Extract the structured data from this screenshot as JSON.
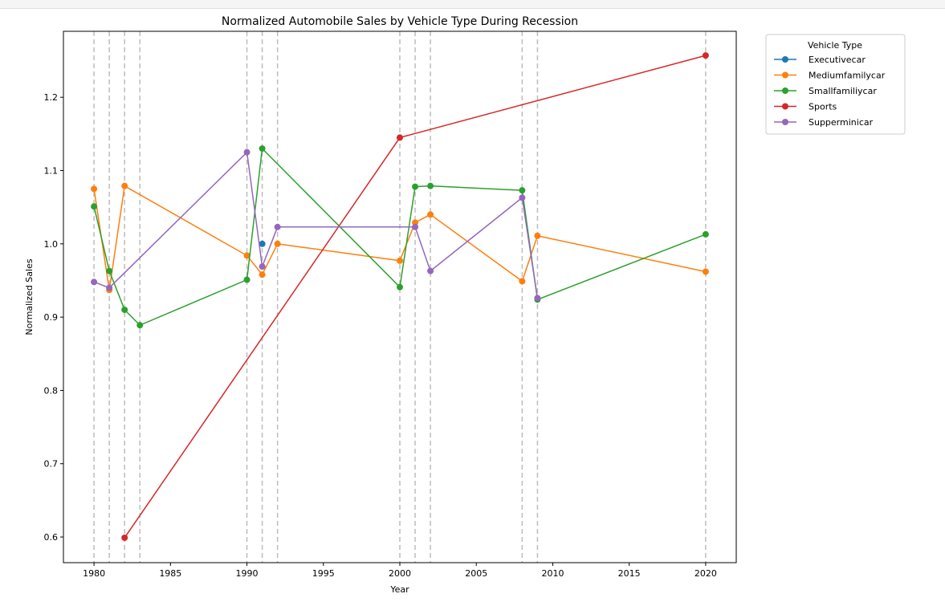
{
  "chart_data": {
    "type": "line",
    "title": "Normalized Automobile Sales by Vehicle Type During Recession",
    "xlabel": "Year",
    "ylabel": "Normalized Sales",
    "xlim": [
      1978,
      2022
    ],
    "ylim": [
      0.565,
      1.29
    ],
    "xticks": [
      1980,
      1985,
      1990,
      1995,
      2000,
      2005,
      2010,
      2015,
      2020
    ],
    "yticks": [
      0.6,
      0.7,
      0.8,
      0.9,
      1.0,
      1.1,
      1.2
    ],
    "recession_years": [
      1980,
      1981,
      1982,
      1983,
      1990,
      1991,
      1992,
      2000,
      2001,
      2002,
      2008,
      2009,
      2020
    ],
    "legend": {
      "title": "Vehicle Type",
      "position": "outside-top-right"
    },
    "series": [
      {
        "name": "Executivecar",
        "color": "#1f77b4",
        "points": [
          [
            1991,
            1.0
          ]
        ]
      },
      {
        "name": "Mediumfamilycar",
        "color": "#ff7f0e",
        "points": [
          [
            1980,
            1.075
          ],
          [
            1981,
            0.937
          ],
          [
            1982,
            1.079
          ],
          [
            1990,
            0.984
          ],
          [
            1991,
            0.958
          ],
          [
            1992,
            1.0
          ],
          [
            2000,
            0.977
          ],
          [
            2001,
            1.029
          ],
          [
            2002,
            1.04
          ],
          [
            2008,
            0.949
          ],
          [
            2009,
            1.011
          ],
          [
            2020,
            0.962
          ]
        ]
      },
      {
        "name": "Smallfamiliycar",
        "color": "#2ca02c",
        "points": [
          [
            1980,
            1.051
          ],
          [
            1981,
            0.963
          ],
          [
            1982,
            0.91
          ],
          [
            1983,
            0.889
          ],
          [
            1990,
            0.951
          ],
          [
            1991,
            1.13
          ],
          [
            2000,
            0.941
          ],
          [
            2001,
            1.078
          ],
          [
            2002,
            1.079
          ],
          [
            2008,
            1.073
          ],
          [
            2009,
            0.924
          ],
          [
            2020,
            1.013
          ]
        ]
      },
      {
        "name": "Sports",
        "color": "#d62728",
        "points": [
          [
            1982,
            0.599
          ],
          [
            2000,
            1.145
          ],
          [
            2020,
            1.257
          ]
        ]
      },
      {
        "name": "Supperminicar",
        "color": "#9467bd",
        "points": [
          [
            1980,
            0.948
          ],
          [
            1981,
            0.94
          ],
          [
            1990,
            1.125
          ],
          [
            1991,
            0.969
          ],
          [
            1992,
            1.023
          ],
          [
            2001,
            1.023
          ],
          [
            2002,
            0.963
          ],
          [
            2008,
            1.063
          ],
          [
            2009,
            0.926
          ]
        ]
      }
    ]
  }
}
